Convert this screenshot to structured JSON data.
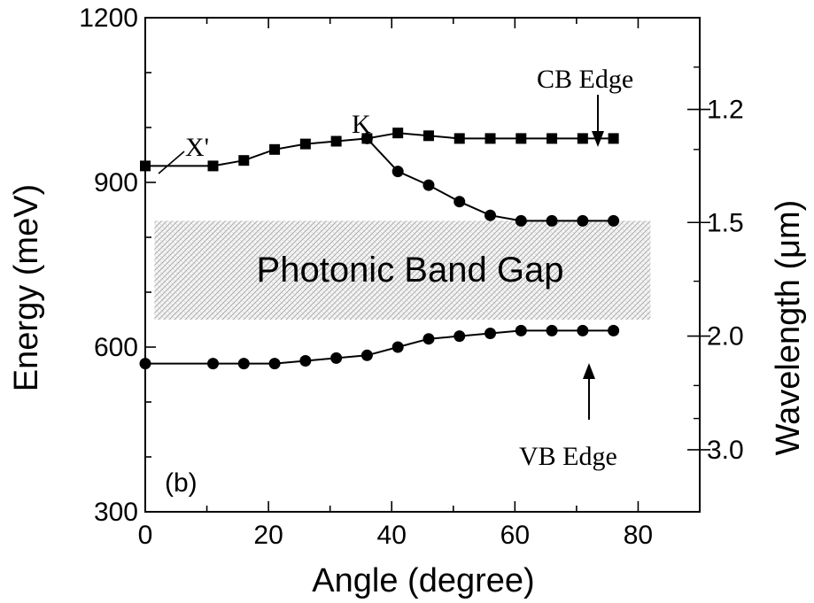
{
  "chart_data": {
    "type": "line",
    "panel_label": "(b)",
    "xlabel": "Angle (degree)",
    "ylabel": "Energy (meV)",
    "y2label": "Wavelength (μm)",
    "xlim": [
      0,
      90
    ],
    "ylim": [
      300,
      1200
    ],
    "x_ticks": [
      "0",
      "20",
      "40",
      "60",
      "80"
    ],
    "y_ticks": [
      "300",
      "600",
      "900",
      "1200"
    ],
    "y2_ticks": [
      "1.2",
      "1.5",
      "2.0",
      "3.0"
    ],
    "y2_tick_energy_meV": [
      1033,
      827,
      620,
      413
    ],
    "band_gap": {
      "label": "Photonic Band Gap",
      "range": [
        650,
        830
      ]
    },
    "annotations": {
      "x_prime": "X'",
      "k": "K",
      "cb_edge": "CB Edge",
      "vb_edge": "VB Edge"
    },
    "series": [
      {
        "marker": "square",
        "x": [
          0,
          11,
          16,
          21,
          26,
          31,
          36,
          41,
          46,
          51,
          56,
          61,
          66,
          71,
          76
        ],
        "values": [
          930,
          930,
          940,
          960,
          970,
          975,
          980,
          990,
          985,
          980,
          980,
          980,
          980,
          980,
          980
        ]
      },
      {
        "marker": "circle",
        "x": [
          36,
          41,
          46,
          51,
          56,
          61,
          66,
          71,
          76
        ],
        "values": [
          980,
          920,
          895,
          865,
          840,
          830,
          830,
          830,
          830
        ]
      },
      {
        "marker": "circle",
        "x": [
          0,
          11,
          16,
          21,
          26,
          31,
          36,
          41,
          46,
          51,
          56,
          61,
          66,
          71,
          76
        ],
        "values": [
          570,
          570,
          570,
          570,
          575,
          580,
          585,
          600,
          615,
          620,
          625,
          630,
          630,
          630,
          630
        ]
      }
    ]
  }
}
